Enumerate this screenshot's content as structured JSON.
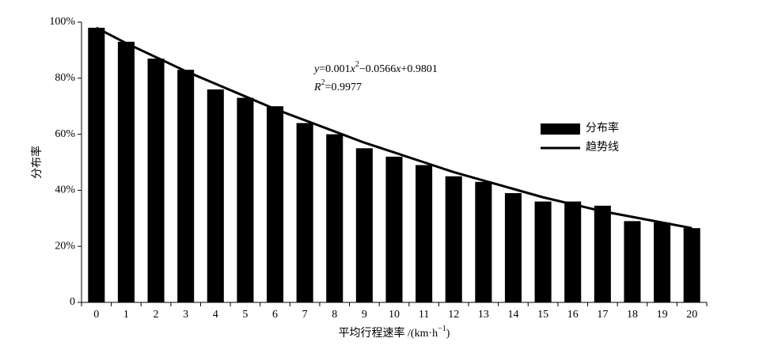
{
  "chart_data": {
    "type": "bar",
    "y_label": "分布率",
    "x_label": [
      "平均行程速率 /(km·h",
      "−1",
      ")"
    ],
    "annotation": [
      [
        "y",
        "=0.001",
        "x",
        "2",
        "−0.0566",
        "x",
        "+0.9801"
      ],
      [
        "R",
        "2",
        "=0.9977"
      ]
    ],
    "categories": [
      "0",
      "1",
      "2",
      "3",
      "4",
      "5",
      "6",
      "7",
      "8",
      "9",
      "10",
      "11",
      "12",
      "13",
      "14",
      "15",
      "16",
      "17",
      "18",
      "19",
      "20"
    ],
    "series": [
      {
        "name": "分布率",
        "type": "bar",
        "color": "#000000",
        "values": [
          98,
          93,
          87,
          83,
          76,
          73,
          70,
          64,
          60,
          55,
          52,
          49,
          45,
          43,
          39,
          36,
          36,
          34.5,
          29,
          28.5,
          26.5
        ]
      },
      {
        "name": "趋势线",
        "type": "line",
        "color": "#000000",
        "values": [
          98,
          92.5,
          87.5,
          82.5,
          78,
          73.5,
          69,
          65,
          61,
          57,
          53.5,
          50,
          46.5,
          43.5,
          40.5,
          37.5,
          35,
          32.5,
          30.5,
          28.5,
          26.5
        ]
      }
    ],
    "ylim": [
      0,
      100
    ],
    "yticks": [
      0,
      {
        "value": 20,
        "label": "20%"
      },
      {
        "value": 40,
        "label": "40%"
      },
      {
        "value": 60,
        "label": "60%"
      },
      {
        "value": 80,
        "label": "80%"
      },
      {
        "value": 100,
        "label": "100%"
      }
    ],
    "legend": "right"
  }
}
